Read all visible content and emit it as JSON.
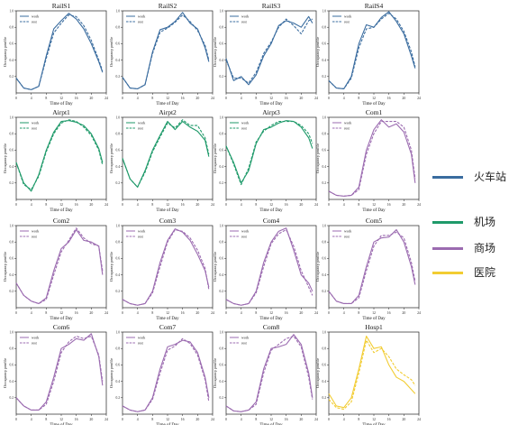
{
  "chart_data": {
    "type": "line",
    "x_label": "Time of Day",
    "y_label": "Occupancy profile",
    "x_ticks": [
      0,
      4,
      8,
      12,
      16,
      20,
      24
    ],
    "y_ticks": [
      0.2,
      0.4,
      0.6,
      0.8,
      1.0
    ],
    "xlim": [
      0,
      24
    ],
    "ylim": [
      0,
      1.0
    ],
    "x": [
      0,
      2,
      4,
      6,
      8,
      10,
      12,
      14,
      16,
      18,
      20,
      22,
      23
    ],
    "series_labels": [
      "work",
      "rest"
    ],
    "category_colors": {
      "火车站": "#3a6c9f",
      "机场": "#1f9a6a",
      "商场": "#9b6bb0",
      "医院": "#f2cc32"
    },
    "legend": [
      {
        "label": "火车站",
        "color": "#3a6c9f"
      },
      {
        "label": "机场",
        "color": "#1f9a6a"
      },
      {
        "label": "商场",
        "color": "#9b6bb0"
      },
      {
        "label": "医院",
        "color": "#f2cc32"
      }
    ],
    "panels": [
      {
        "title": "RailS1",
        "category": "火车站",
        "legend_shown": true,
        "series": [
          {
            "name": "work",
            "values": [
              0.18,
              0.06,
              0.04,
              0.08,
              0.45,
              0.78,
              0.88,
              0.97,
              0.9,
              0.78,
              0.6,
              0.38,
              0.25
            ]
          },
          {
            "name": "rest",
            "values": [
              0.18,
              0.06,
              0.04,
              0.08,
              0.42,
              0.73,
              0.85,
              0.95,
              0.93,
              0.82,
              0.64,
              0.4,
              0.27
            ]
          }
        ]
      },
      {
        "title": "RailS2",
        "category": "火车站",
        "legend_shown": true,
        "series": [
          {
            "name": "work",
            "values": [
              0.19,
              0.06,
              0.05,
              0.1,
              0.5,
              0.77,
              0.8,
              0.87,
              0.98,
              0.85,
              0.78,
              0.55,
              0.38
            ]
          },
          {
            "name": "rest",
            "values": [
              0.19,
              0.06,
              0.05,
              0.1,
              0.48,
              0.74,
              0.79,
              0.86,
              0.95,
              0.87,
              0.76,
              0.58,
              0.4
            ]
          }
        ]
      },
      {
        "title": "RailS3",
        "category": "火车站",
        "legend_shown": true,
        "series": [
          {
            "name": "work",
            "values": [
              0.42,
              0.15,
              0.2,
              0.1,
              0.22,
              0.45,
              0.6,
              0.82,
              0.88,
              0.85,
              0.8,
              0.93,
              0.85
            ]
          },
          {
            "name": "rest",
            "values": [
              0.4,
              0.18,
              0.18,
              0.12,
              0.25,
              0.48,
              0.62,
              0.8,
              0.9,
              0.82,
              0.72,
              0.88,
              0.9
            ]
          }
        ]
      },
      {
        "title": "RailS4",
        "category": "火车站",
        "legend_shown": true,
        "series": [
          {
            "name": "work",
            "values": [
              0.15,
              0.06,
              0.05,
              0.2,
              0.6,
              0.83,
              0.8,
              0.92,
              0.99,
              0.87,
              0.72,
              0.45,
              0.3
            ]
          },
          {
            "name": "rest",
            "values": [
              0.15,
              0.06,
              0.05,
              0.18,
              0.55,
              0.78,
              0.8,
              0.9,
              0.97,
              0.9,
              0.75,
              0.5,
              0.32
            ]
          }
        ]
      },
      {
        "title": "Airpt1",
        "category": "机场",
        "legend_shown": true,
        "series": [
          {
            "name": "work",
            "values": [
              0.45,
              0.2,
              0.1,
              0.3,
              0.6,
              0.82,
              0.95,
              0.96,
              0.94,
              0.9,
              0.8,
              0.62,
              0.45
            ]
          },
          {
            "name": "rest",
            "values": [
              0.45,
              0.18,
              0.12,
              0.28,
              0.58,
              0.8,
              0.93,
              0.97,
              0.95,
              0.88,
              0.78,
              0.6,
              0.42
            ]
          }
        ]
      },
      {
        "title": "Airpt2",
        "category": "机场",
        "legend_shown": true,
        "series": [
          {
            "name": "work",
            "values": [
              0.5,
              0.25,
              0.15,
              0.35,
              0.6,
              0.78,
              0.95,
              0.85,
              0.95,
              0.88,
              0.83,
              0.72,
              0.52
            ]
          },
          {
            "name": "rest",
            "values": [
              0.5,
              0.25,
              0.15,
              0.33,
              0.58,
              0.76,
              0.93,
              0.87,
              0.97,
              0.9,
              0.9,
              0.75,
              0.55
            ]
          }
        ]
      },
      {
        "title": "Airpt3",
        "category": "机场",
        "legend_shown": true,
        "series": [
          {
            "name": "work",
            "values": [
              0.65,
              0.45,
              0.2,
              0.35,
              0.68,
              0.85,
              0.88,
              0.93,
              0.96,
              0.95,
              0.88,
              0.75,
              0.62
            ]
          },
          {
            "name": "rest",
            "values": [
              0.65,
              0.43,
              0.18,
              0.38,
              0.7,
              0.83,
              0.9,
              0.95,
              0.95,
              0.95,
              0.9,
              0.8,
              0.68
            ]
          }
        ]
      },
      {
        "title": "Com1",
        "category": "商场",
        "legend_shown": true,
        "series": [
          {
            "name": "work",
            "values": [
              0.1,
              0.05,
              0.04,
              0.05,
              0.15,
              0.6,
              0.85,
              0.97,
              0.88,
              0.92,
              0.82,
              0.55,
              0.2
            ]
          },
          {
            "name": "rest",
            "values": [
              0.1,
              0.05,
              0.04,
              0.05,
              0.12,
              0.55,
              0.8,
              0.95,
              0.95,
              0.95,
              0.88,
              0.6,
              0.25
            ]
          }
        ]
      },
      {
        "title": "Com2",
        "category": "商场",
        "legend_shown": true,
        "series": [
          {
            "name": "work",
            "values": [
              0.3,
              0.15,
              0.08,
              0.05,
              0.12,
              0.45,
              0.72,
              0.8,
              0.95,
              0.82,
              0.8,
              0.75,
              0.4
            ]
          },
          {
            "name": "rest",
            "values": [
              0.3,
              0.15,
              0.08,
              0.05,
              0.1,
              0.4,
              0.68,
              0.82,
              0.97,
              0.85,
              0.78,
              0.75,
              0.45
            ]
          }
        ]
      },
      {
        "title": "Com3",
        "category": "商场",
        "legend_shown": true,
        "series": [
          {
            "name": "work",
            "values": [
              0.1,
              0.05,
              0.03,
              0.05,
              0.2,
              0.55,
              0.82,
              0.96,
              0.92,
              0.82,
              0.65,
              0.45,
              0.25
            ]
          },
          {
            "name": "rest",
            "values": [
              0.1,
              0.05,
              0.03,
              0.05,
              0.18,
              0.5,
              0.8,
              0.95,
              0.93,
              0.85,
              0.7,
              0.48,
              0.22
            ]
          }
        ]
      },
      {
        "title": "Com4",
        "category": "商场",
        "legend_shown": true,
        "series": [
          {
            "name": "work",
            "values": [
              0.1,
              0.05,
              0.03,
              0.05,
              0.2,
              0.55,
              0.8,
              0.93,
              0.97,
              0.7,
              0.4,
              0.3,
              0.2
            ]
          },
          {
            "name": "rest",
            "values": [
              0.1,
              0.05,
              0.03,
              0.05,
              0.18,
              0.5,
              0.78,
              0.9,
              0.95,
              0.75,
              0.45,
              0.25,
              0.15
            ]
          }
        ]
      },
      {
        "title": "Com5",
        "category": "商场",
        "legend_shown": true,
        "series": [
          {
            "name": "work",
            "values": [
              0.2,
              0.08,
              0.05,
              0.05,
              0.15,
              0.5,
              0.8,
              0.85,
              0.86,
              0.95,
              0.8,
              0.5,
              0.28
            ]
          },
          {
            "name": "rest",
            "values": [
              0.2,
              0.08,
              0.05,
              0.05,
              0.12,
              0.45,
              0.75,
              0.88,
              0.88,
              0.92,
              0.85,
              0.55,
              0.32
            ]
          }
        ]
      },
      {
        "title": "Com6",
        "category": "商场",
        "legend_shown": true,
        "series": [
          {
            "name": "work",
            "values": [
              0.2,
              0.1,
              0.05,
              0.05,
              0.15,
              0.45,
              0.8,
              0.85,
              0.92,
              0.9,
              0.98,
              0.7,
              0.35
            ]
          },
          {
            "name": "rest",
            "values": [
              0.2,
              0.1,
              0.05,
              0.05,
              0.12,
              0.4,
              0.75,
              0.88,
              0.95,
              0.92,
              0.95,
              0.72,
              0.4
            ]
          }
        ]
      },
      {
        "title": "Com7",
        "category": "商场",
        "legend_shown": true,
        "series": [
          {
            "name": "work",
            "values": [
              0.1,
              0.05,
              0.03,
              0.05,
              0.2,
              0.55,
              0.82,
              0.85,
              0.9,
              0.88,
              0.75,
              0.45,
              0.2
            ]
          },
          {
            "name": "rest",
            "values": [
              0.1,
              0.05,
              0.03,
              0.05,
              0.18,
              0.5,
              0.78,
              0.83,
              0.92,
              0.86,
              0.72,
              0.42,
              0.15
            ]
          }
        ]
      },
      {
        "title": "Com8",
        "category": "商场",
        "legend_shown": true,
        "series": [
          {
            "name": "work",
            "values": [
              0.1,
              0.04,
              0.03,
              0.05,
              0.15,
              0.55,
              0.8,
              0.82,
              0.85,
              0.97,
              0.85,
              0.5,
              0.2
            ]
          },
          {
            "name": "rest",
            "values": [
              0.1,
              0.04,
              0.03,
              0.05,
              0.12,
              0.5,
              0.78,
              0.85,
              0.92,
              0.95,
              0.82,
              0.45,
              0.18
            ]
          }
        ]
      },
      {
        "title": "Hosp1",
        "category": "医院",
        "legend_shown": false,
        "series": [
          {
            "name": "work",
            "values": [
              0.25,
              0.1,
              0.08,
              0.2,
              0.55,
              0.95,
              0.8,
              0.82,
              0.6,
              0.45,
              0.4,
              0.3,
              0.25
            ]
          },
          {
            "name": "rest",
            "values": [
              0.18,
              0.08,
              0.06,
              0.15,
              0.5,
              0.9,
              0.75,
              0.8,
              0.7,
              0.55,
              0.48,
              0.42,
              0.35
            ]
          }
        ]
      }
    ]
  }
}
